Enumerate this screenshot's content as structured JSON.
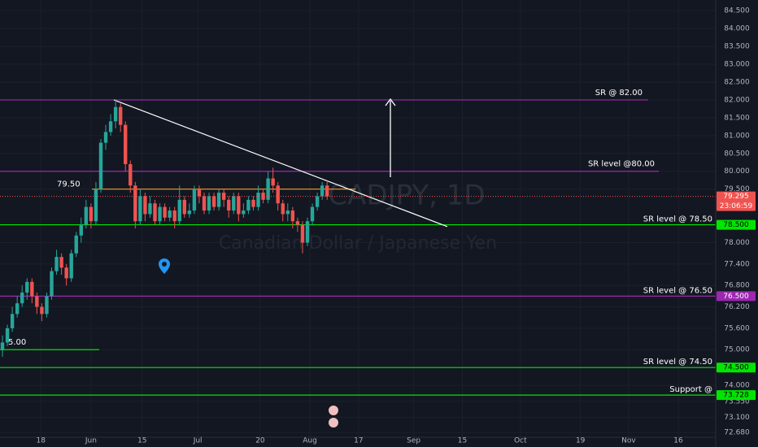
{
  "chart_data": {
    "type": "candlestick",
    "watermark": {
      "symbol": "CADJPY, 1D",
      "description": "Canadian Dollar / Japanese Yen"
    },
    "up_color": "#26a69a",
    "down_color": "#ef5350",
    "grid": true,
    "xlim": [
      -0.5,
      145
    ],
    "ylim": [
      72.5,
      84.8
    ],
    "xticks": [
      {
        "value": 7.8,
        "label": "18"
      },
      {
        "value": 18,
        "label": "Jun"
      },
      {
        "value": 28.4,
        "label": "15"
      },
      {
        "value": 39.7,
        "label": "Jul"
      },
      {
        "value": 52.4,
        "label": "20"
      },
      {
        "value": 62.5,
        "label": "Aug"
      },
      {
        "value": 72.4,
        "label": "17"
      },
      {
        "value": 83.6,
        "label": "Sep"
      },
      {
        "value": 93.5,
        "label": "15"
      },
      {
        "value": 105.3,
        "label": "Oct"
      },
      {
        "value": 117.5,
        "label": "19"
      },
      {
        "value": 127.3,
        "label": "Nov"
      },
      {
        "value": 137.4,
        "label": "16"
      }
    ],
    "yticks": [
      {
        "value": 84.5,
        "label": "84.500"
      },
      {
        "value": 84,
        "label": "84.000"
      },
      {
        "value": 83.5,
        "label": "83.500"
      },
      {
        "value": 83,
        "label": "83.000"
      },
      {
        "value": 82.5,
        "label": "82.500"
      },
      {
        "value": 82,
        "label": "82.000"
      },
      {
        "value": 81.5,
        "label": "81.500"
      },
      {
        "value": 81,
        "label": "81.000"
      },
      {
        "value": 80.5,
        "label": "80.500"
      },
      {
        "value": 80,
        "label": "80.000"
      },
      {
        "value": 79.5,
        "label": "79.500"
      },
      {
        "value": 78,
        "label": "78.000"
      },
      {
        "value": 77.4,
        "label": "77.400"
      },
      {
        "value": 76.8,
        "label": "76.800"
      },
      {
        "value": 76.2,
        "label": "76.200"
      },
      {
        "value": 75.6,
        "label": "75.600"
      },
      {
        "value": 75,
        "label": "75.000"
      },
      {
        "value": 74,
        "label": "74.000"
      },
      {
        "value": 73.55,
        "label": "73.550"
      },
      {
        "value": 73.1,
        "label": "73.100"
      },
      {
        "value": 72.68,
        "label": "72.680"
      }
    ],
    "x": [
      0,
      1,
      2,
      3,
      4,
      5,
      6,
      7,
      8,
      9,
      10,
      11,
      12,
      13,
      14,
      15,
      16,
      17,
      18,
      19,
      20,
      21,
      22,
      23,
      24,
      25,
      26,
      27,
      28,
      29,
      30,
      31,
      32,
      33,
      34,
      35,
      36,
      37,
      38,
      39,
      40,
      41,
      42,
      43,
      44,
      45,
      46,
      47,
      48,
      49,
      50,
      51,
      52,
      53,
      54,
      55,
      56,
      57,
      58,
      59,
      60,
      61,
      62,
      63,
      64,
      65,
      66
    ],
    "open": [
      75.0,
      75.2,
      75.6,
      76.0,
      76.3,
      76.6,
      76.9,
      76.5,
      76.2,
      76.0,
      76.5,
      77.2,
      77.6,
      77.3,
      77.0,
      77.7,
      78.2,
      78.5,
      79.0,
      78.6,
      79.5,
      80.8,
      81.1,
      81.4,
      81.8,
      81.3,
      80.2,
      79.6,
      78.6,
      79.3,
      78.8,
      79.1,
      78.6,
      79.0,
      78.7,
      78.9,
      78.6,
      79.2,
      78.8,
      78.9,
      79.5,
      79.3,
      78.9,
      79.3,
      79.0,
      79.4,
      79.2,
      78.9,
      79.3,
      78.8,
      78.9,
      79.2,
      79.0,
      79.4,
      79.2,
      79.8,
      79.6,
      79.1,
      78.8,
      78.9,
      78.6,
      78.5,
      78.0,
      78.6,
      79.0,
      79.3,
      79.6
    ],
    "high": [
      75.4,
      75.7,
      76.2,
      76.5,
      76.8,
      77.0,
      77.0,
      76.6,
      76.3,
      76.6,
      77.3,
      77.8,
      77.7,
      77.4,
      77.8,
      78.3,
      78.7,
      79.2,
      79.1,
      79.7,
      80.9,
      81.3,
      81.6,
      82.0,
      81.9,
      81.4,
      80.3,
      79.7,
      79.5,
      79.4,
      79.3,
      79.2,
      79.1,
      79.1,
      79.0,
      79.0,
      79.6,
      79.3,
      79.1,
      79.6,
      79.6,
      79.4,
      79.4,
      79.4,
      79.5,
      79.5,
      79.3,
      79.4,
      79.4,
      79.1,
      79.3,
      79.3,
      79.6,
      79.5,
      80.0,
      80.1,
      79.7,
      79.2,
      79.1,
      79.0,
      78.7,
      78.6,
      78.7,
      79.1,
      79.4,
      79.7,
      79.7
    ],
    "low": [
      74.8,
      75.1,
      75.5,
      75.9,
      76.2,
      76.4,
      76.3,
      76.0,
      75.8,
      75.9,
      76.4,
      77.1,
      77.1,
      76.8,
      76.9,
      77.6,
      78.0,
      78.4,
      78.4,
      78.5,
      79.4,
      80.6,
      81.0,
      81.2,
      81.1,
      80.0,
      79.4,
      78.4,
      78.5,
      78.6,
      78.7,
      78.5,
      78.5,
      78.6,
      78.6,
      78.4,
      78.5,
      78.7,
      78.7,
      78.8,
      79.1,
      78.8,
      78.8,
      78.9,
      78.9,
      79.0,
      78.7,
      78.8,
      78.6,
      78.7,
      78.8,
      78.9,
      78.9,
      79.1,
      79.1,
      79.4,
      78.9,
      78.6,
      78.6,
      78.4,
      78.3,
      77.7,
      77.9,
      78.5,
      78.9,
      79.2,
      79.2
    ],
    "close": [
      75.2,
      75.6,
      76.0,
      76.3,
      76.6,
      76.9,
      76.5,
      76.2,
      76.0,
      76.5,
      77.2,
      77.6,
      77.3,
      77.0,
      77.7,
      78.2,
      78.5,
      79.0,
      78.6,
      79.5,
      80.8,
      81.1,
      81.4,
      81.8,
      81.3,
      80.2,
      79.6,
      78.6,
      79.3,
      78.8,
      79.1,
      78.6,
      79.0,
      78.7,
      78.9,
      78.6,
      79.2,
      78.8,
      78.9,
      79.5,
      79.3,
      78.9,
      79.3,
      79.0,
      79.4,
      79.2,
      78.9,
      79.3,
      78.8,
      78.9,
      79.2,
      79.0,
      79.4,
      79.2,
      79.8,
      79.6,
      79.1,
      78.8,
      78.9,
      78.6,
      78.5,
      78.0,
      78.6,
      79.0,
      79.3,
      79.6,
      79.295
    ],
    "levels": [
      {
        "value": 82.0,
        "label": "SR @ 82.00",
        "color": "#9c27b0"
      },
      {
        "value": 80.0,
        "label": "SR level @80.00",
        "color": "#9c27b0"
      },
      {
        "value": 78.5,
        "label": "SR level @ 78.50",
        "badge": "78.500",
        "color": "#00e600"
      },
      {
        "value": 76.5,
        "label": "SR level @ 76.50",
        "badge": "76.500",
        "color": "#9c27b0"
      },
      {
        "value": 74.5,
        "label": "SR level @ 74.50",
        "badge": "74.500",
        "color": "#00e600"
      },
      {
        "value": 73.728,
        "label": "Support @",
        "badge": "73.728",
        "color": "#00e600"
      },
      {
        "value": 75.0,
        "label": "5.00",
        "color": "#00e600"
      },
      {
        "value": 79.5,
        "label": "79.50",
        "color": "#f0a030"
      }
    ],
    "trendline": {
      "start": 82.0,
      "end": 78.45,
      "color": "#ffffff"
    },
    "last_price": {
      "value": 79.295,
      "label": "79.295",
      "countdown": "23:06:59",
      "color": "#ef5350"
    }
  }
}
